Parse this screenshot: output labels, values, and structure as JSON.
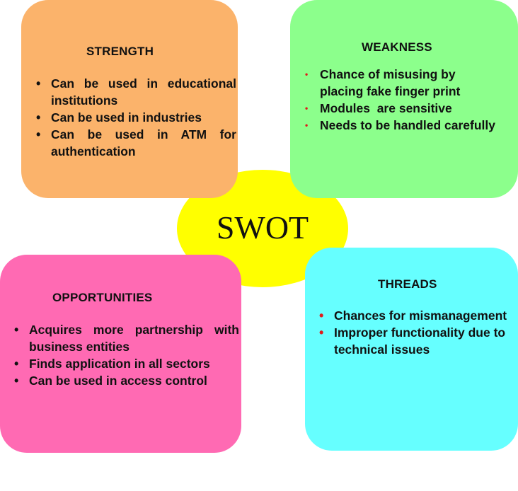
{
  "center": {
    "label": "SWOT"
  },
  "strength": {
    "title": "STRENGTH",
    "items": [
      "Can be used in educational institutions",
      "Can be used in industries",
      "Can be used in ATM for authentication"
    ]
  },
  "weakness": {
    "title": "WEAKNESS",
    "items": [
      "Chance of misusing by placing fake finger print",
      "Modules  are sensitive",
      "Needs to be handled carefully"
    ]
  },
  "opportunities": {
    "title": "OPPORTUNITIES",
    "items": [
      "Acquires more partnership with business entities",
      "Finds application in all sectors",
      "Can be used in access control"
    ]
  },
  "threads": {
    "title": "THREADS",
    "items": [
      "Chances for mismanagement",
      "Improper functionality due to technical issues"
    ]
  },
  "colors": {
    "strength": "#fbb36b",
    "weakness": "#8cff8c",
    "opportunities": "#ff6ab3",
    "threads": "#66ffff",
    "center": "#ffff00",
    "bullet_red": "#e01b1b"
  }
}
